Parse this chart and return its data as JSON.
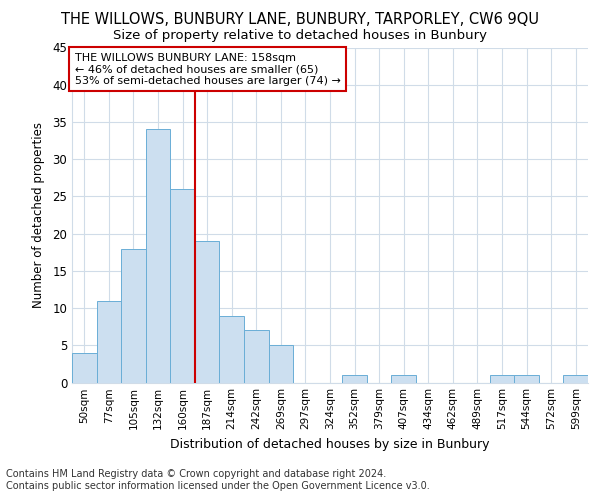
{
  "title": "THE WILLOWS, BUNBURY LANE, BUNBURY, TARPORLEY, CW6 9QU",
  "subtitle": "Size of property relative to detached houses in Bunbury",
  "xlabel": "Distribution of detached houses by size in Bunbury",
  "ylabel": "Number of detached properties",
  "footer_line1": "Contains HM Land Registry data © Crown copyright and database right 2024.",
  "footer_line2": "Contains public sector information licensed under the Open Government Licence v3.0.",
  "categories": [
    "50sqm",
    "77sqm",
    "105sqm",
    "132sqm",
    "160sqm",
    "187sqm",
    "214sqm",
    "242sqm",
    "269sqm",
    "297sqm",
    "324sqm",
    "352sqm",
    "379sqm",
    "407sqm",
    "434sqm",
    "462sqm",
    "489sqm",
    "517sqm",
    "544sqm",
    "572sqm",
    "599sqm"
  ],
  "values": [
    4,
    11,
    18,
    34,
    26,
    19,
    9,
    7,
    5,
    0,
    0,
    1,
    0,
    1,
    0,
    0,
    0,
    1,
    1,
    0,
    1
  ],
  "bar_color": "#ccdff0",
  "bar_edge_color": "#6aaed6",
  "highlight_index": 4,
  "highlight_line_color": "#cc0000",
  "ylim": [
    0,
    45
  ],
  "yticks": [
    0,
    5,
    10,
    15,
    20,
    25,
    30,
    35,
    40,
    45
  ],
  "annotation_title": "THE WILLOWS BUNBURY LANE: 158sqm",
  "annotation_line1": "← 46% of detached houses are smaller (65)",
  "annotation_line2": "53% of semi-detached houses are larger (74) →",
  "annotation_box_color": "#ffffff",
  "annotation_box_edge": "#cc0000",
  "bg_color": "#ffffff",
  "plot_bg_color": "#ffffff",
  "grid_color": "#d0dce8",
  "title_fontsize": 10.5,
  "subtitle_fontsize": 9.5,
  "footer_fontsize": 7
}
